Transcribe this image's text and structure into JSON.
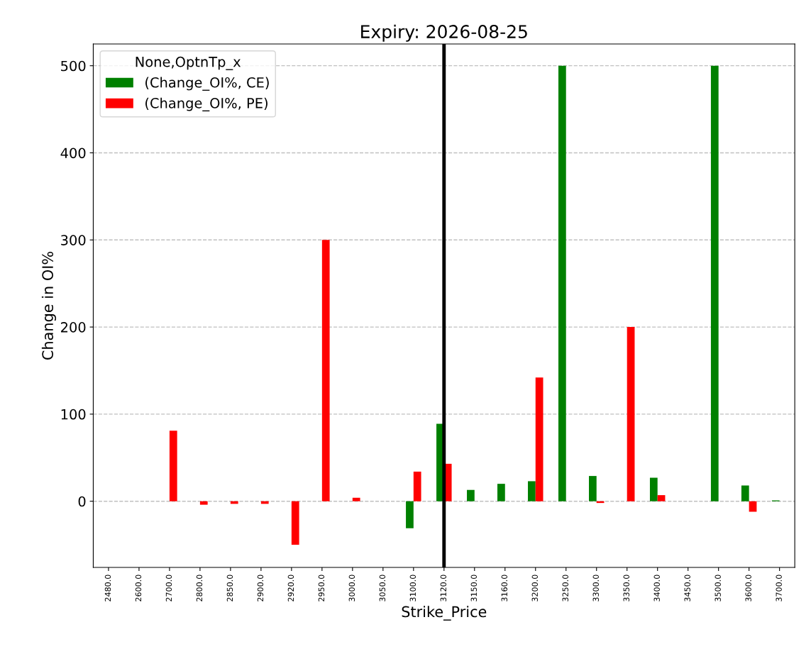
{
  "chart_data": {
    "type": "bar",
    "title": "Expiry: 2026-08-25",
    "xlabel": "Strike_Price",
    "ylabel": "Change in OI%",
    "legend_title": "None,OptnTp_x",
    "categories": [
      "2480.0",
      "2600.0",
      "2700.0",
      "2800.0",
      "2850.0",
      "2900.0",
      "2920.0",
      "2950.0",
      "3000.0",
      "3050.0",
      "3100.0",
      "3120.0",
      "3150.0",
      "3160.0",
      "3200.0",
      "3250.0",
      "3300.0",
      "3350.0",
      "3400.0",
      "3450.0",
      "3500.0",
      "3600.0",
      "3700.0"
    ],
    "series": [
      {
        "name": "(Change_OI%, CE)",
        "color": "#008000",
        "values": [
          0,
          0,
          0,
          0,
          0,
          0,
          0,
          0,
          0,
          0,
          -31,
          89,
          13,
          20,
          23,
          500,
          29,
          0,
          27,
          0,
          500,
          18,
          1
        ]
      },
      {
        "name": "(Change_OI%, PE)",
        "color": "#ff0000",
        "values": [
          0,
          0,
          81,
          -4,
          -3,
          -3,
          -50,
          300,
          4,
          0,
          34,
          43,
          0,
          0,
          142,
          0,
          -2,
          200,
          7,
          0,
          0,
          -12,
          0
        ]
      }
    ],
    "ylim": [
      -76,
      525
    ],
    "yticks": [
      0,
      100,
      200,
      300,
      400,
      500
    ],
    "ref_lines": [
      {
        "axis": "x",
        "value": "3120.0",
        "color": "#000000",
        "line_style": "solid"
      }
    ],
    "grid": "y",
    "legend": "top left"
  }
}
